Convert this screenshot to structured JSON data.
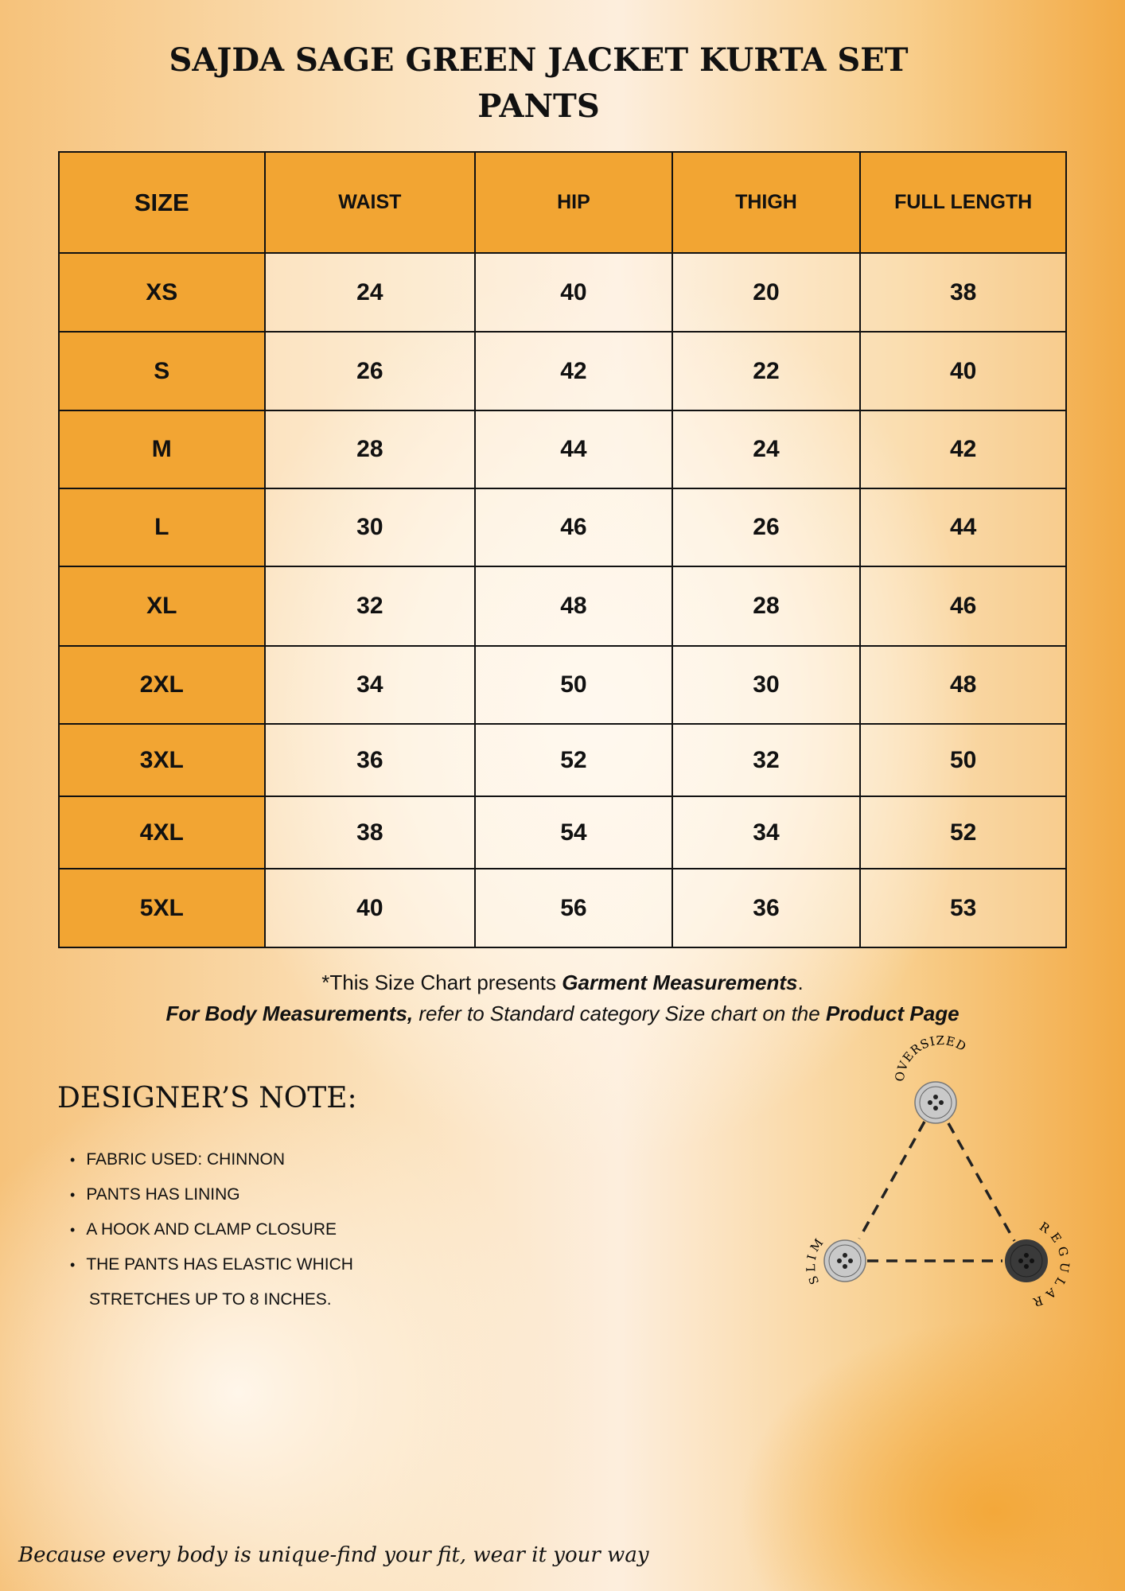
{
  "title": "SAJDA SAGE GREEN JACKET KURTA SET",
  "subtitle": "PANTS",
  "table": {
    "headers": [
      "SIZE",
      "WAIST",
      "HIP",
      "THIGH",
      "FULL LENGTH"
    ],
    "rows": [
      [
        "XS",
        "24",
        "40",
        "20",
        "38"
      ],
      [
        "S",
        "26",
        "42",
        "22",
        "40"
      ],
      [
        "M",
        "28",
        "44",
        "24",
        "42"
      ],
      [
        "L",
        "30",
        "46",
        "26",
        "44"
      ],
      [
        "XL",
        "32",
        "48",
        "28",
        "46"
      ],
      [
        "2XL",
        "34",
        "50",
        "30",
        "48"
      ],
      [
        "3XL",
        "36",
        "52",
        "32",
        "50"
      ],
      [
        "4XL",
        "38",
        "54",
        "34",
        "52"
      ],
      [
        "5XL",
        "40",
        "56",
        "36",
        "53"
      ]
    ]
  },
  "disclaimer": {
    "line1_a": "*This Size Chart presents ",
    "line1_b": "Garment Measurements",
    "line1_c": ".",
    "line2_a": "For Body Measurements,",
    "line2_b": " refer to Standard category Size chart on the ",
    "line2_c": "Product Page"
  },
  "designer_note": {
    "heading": "DESIGNER’S NOTE:",
    "items": [
      "FABRIC USED: CHINNON",
      "PANTS HAS LINING",
      "A HOOK AND CLAMP CLOSURE",
      "THE PANTS HAS ELASTIC WHICH",
      "STRETCHES UP TO 8 INCHES."
    ]
  },
  "fit_diagram": {
    "labels": {
      "top": "OVERSIZED",
      "left": "SLIM",
      "right": "REGULAR"
    },
    "selected": "REGULAR",
    "colors": {
      "light": "#c9c9c9",
      "dark": "#3a3a3a"
    }
  },
  "footer": "Because every body is unique-find your fit, wear it your way"
}
